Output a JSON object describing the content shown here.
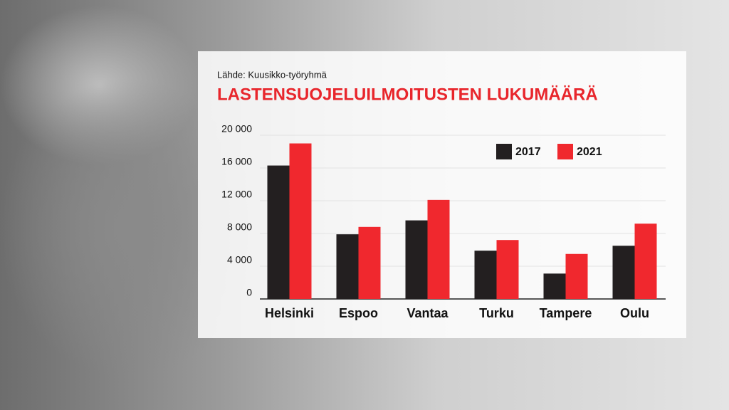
{
  "chart_data": {
    "type": "bar",
    "title": "LASTENSUOJELUILMOITUSTEN LUKUMÄÄRÄ",
    "subtitle": "Lähde: Kuusikko-työryhmä",
    "categories": [
      "Helsinki",
      "Espoo",
      "Vantaa",
      "Turku",
      "Tampere",
      "Oulu"
    ],
    "series": [
      {
        "name": "2017",
        "color": "#231f20",
        "values": [
          16300,
          7900,
          9600,
          5900,
          3100,
          6500
        ]
      },
      {
        "name": "2021",
        "color": "#f0282e",
        "values": [
          19000,
          8800,
          12100,
          7200,
          5500,
          9200
        ]
      }
    ],
    "ylim": [
      0,
      20000
    ],
    "yticks": [
      0,
      {
        "value": 4000,
        "label": "4 000"
      },
      {
        "value": 8000,
        "label": "8 000"
      },
      {
        "value": 12000,
        "label": "12 000"
      },
      {
        "value": 16000,
        "label": "16 000"
      },
      {
        "value": 20000,
        "label": "20 000"
      }
    ],
    "grid": true
  }
}
